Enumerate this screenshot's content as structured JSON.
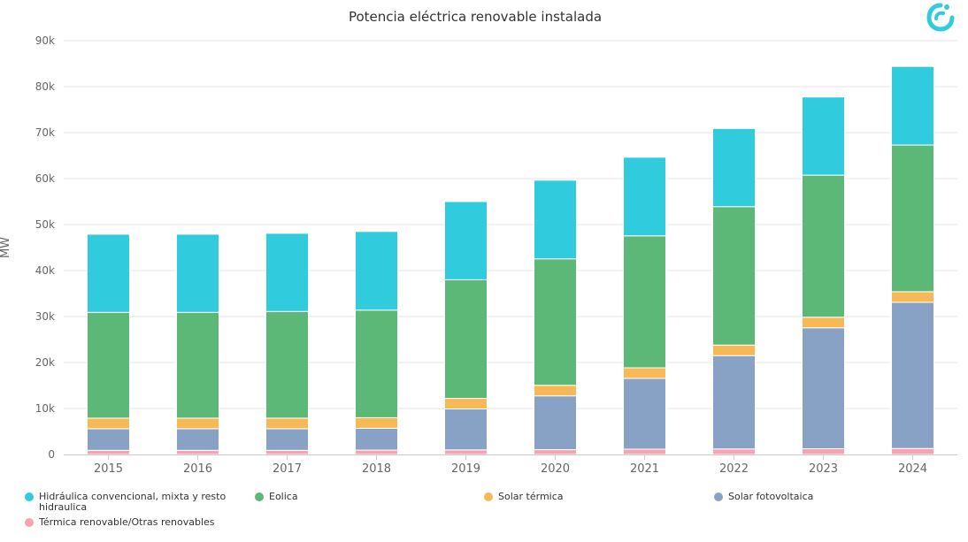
{
  "chart_data": {
    "type": "bar",
    "stacked": true,
    "title": "Potencia eléctrica renovable instalada",
    "ylabel": "MW",
    "xlabel": "",
    "categories": [
      "2015",
      "2016",
      "2017",
      "2018",
      "2019",
      "2020",
      "2021",
      "2022",
      "2023",
      "2024"
    ],
    "ylim": [
      0,
      90000
    ],
    "yticks": [
      0,
      10000,
      20000,
      30000,
      40000,
      50000,
      60000,
      70000,
      80000,
      90000
    ],
    "ytick_labels": [
      "0",
      "10k",
      "20k",
      "30k",
      "40k",
      "50k",
      "60k",
      "70k",
      "80k",
      "90k"
    ],
    "grid": true,
    "legend_position": "bottom",
    "series": [
      {
        "name": "Térmica renovable/Otras renovables",
        "color": "#f7a3b0",
        "values": [
          900,
          900,
          900,
          950,
          1000,
          1050,
          1150,
          1200,
          1250,
          1300
        ]
      },
      {
        "name": "Solar fotovoltaica",
        "color": "#87a2c4",
        "values": [
          4700,
          4700,
          4700,
          4750,
          8900,
          11700,
          15400,
          20300,
          26300,
          31800
        ]
      },
      {
        "name": "Solar térmica",
        "color": "#f7b955",
        "values": [
          2300,
          2300,
          2300,
          2300,
          2300,
          2300,
          2300,
          2300,
          2300,
          2300
        ]
      },
      {
        "name": "Eolica",
        "color": "#5cb877",
        "values": [
          23000,
          23000,
          23200,
          23400,
          25800,
          27500,
          28700,
          30100,
          30900,
          31900
        ]
      },
      {
        "name": "Hidráulica convencional, mixta y resto hidraulica",
        "color": "#31cbde",
        "values": [
          17000,
          17000,
          17000,
          17100,
          17000,
          17100,
          17100,
          17000,
          17000,
          17100
        ]
      }
    ]
  },
  "legend": [
    {
      "label": "Hidráulica convencional, mixta y resto hidraulica",
      "color": "#31cbde"
    },
    {
      "label": "Eolica",
      "color": "#5cb877"
    },
    {
      "label": "Solar térmica",
      "color": "#f7b955"
    },
    {
      "label": "Solar fotovoltaica",
      "color": "#87a2c4"
    },
    {
      "label": "Térmica renovable/Otras renovables",
      "color": "#f7a3b0"
    }
  ],
  "logo": {
    "icon": "brand-logo-icon",
    "color": "#31cbde"
  }
}
